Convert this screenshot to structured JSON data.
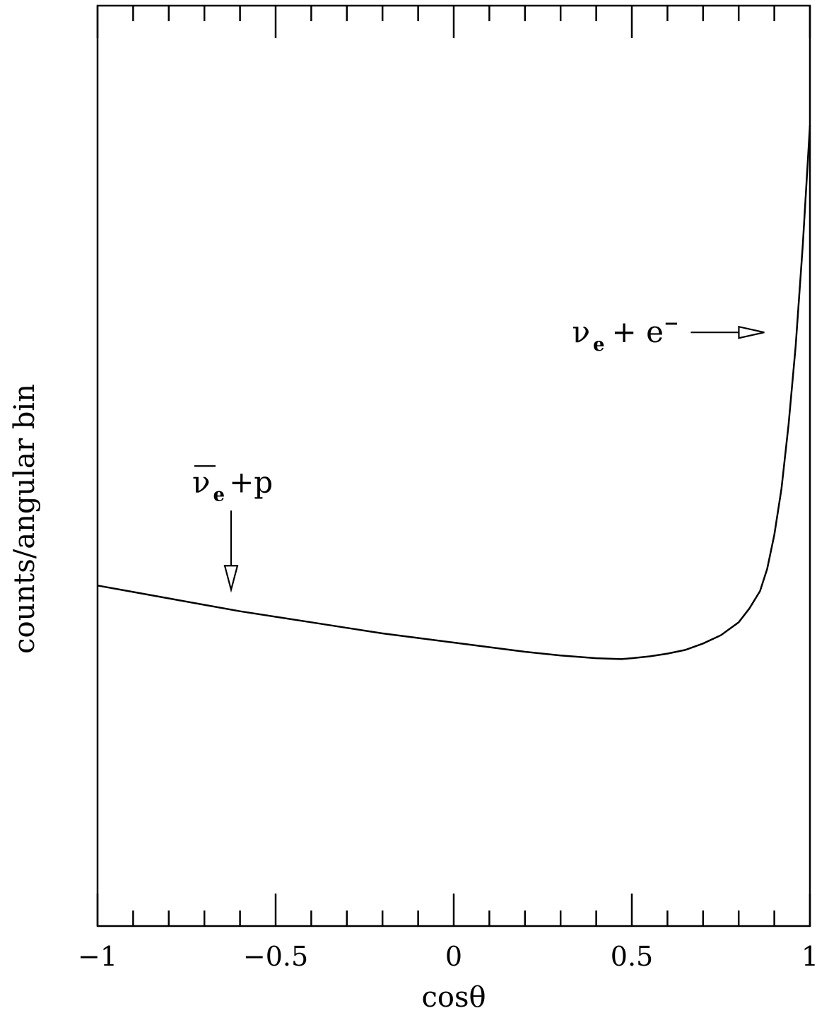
{
  "chart_data": {
    "type": "line",
    "title": "",
    "xlabel": "cosθ",
    "ylabel": "counts/angular bin",
    "xlim": [
      -1,
      1
    ],
    "ylim": [
      0,
      1
    ],
    "y_tick_labels": false,
    "grid": false,
    "legend": "none",
    "x_major_ticks": [
      -1,
      -0.5,
      0,
      0.5,
      1
    ],
    "x_minor_step": 0.1,
    "x_tick_labels": [
      "−1",
      "−0.5",
      "0",
      "0.5",
      "1"
    ],
    "series": [
      {
        "x": [
          -1.0,
          -0.9,
          -0.8,
          -0.7,
          -0.6,
          -0.5,
          -0.4,
          -0.3,
          -0.2,
          -0.1,
          0.0,
          0.1,
          0.2,
          0.3,
          0.4,
          0.47,
          0.5,
          0.55,
          0.6,
          0.65,
          0.7,
          0.75,
          0.8,
          0.83,
          0.86,
          0.88,
          0.9,
          0.92,
          0.94,
          0.96,
          0.98,
          1.0
        ],
        "y": [
          0.37,
          0.363,
          0.356,
          0.349,
          0.342,
          0.336,
          0.33,
          0.324,
          0.318,
          0.313,
          0.308,
          0.303,
          0.298,
          0.294,
          0.291,
          0.29,
          0.291,
          0.293,
          0.296,
          0.3,
          0.307,
          0.316,
          0.33,
          0.345,
          0.364,
          0.388,
          0.425,
          0.475,
          0.545,
          0.63,
          0.74,
          0.87
        ]
      }
    ],
    "annotations": [
      {
        "main": "ν",
        "sub": "e",
        "rest": "+p",
        "overbar": true,
        "arrow": "down",
        "x": -0.625,
        "y": 0.37
      },
      {
        "main": "ν",
        "sub": "e",
        "rest": "+ e",
        "sup": "−",
        "overbar": false,
        "arrow": "right",
        "x": 0.86,
        "y": 0.645
      }
    ]
  }
}
